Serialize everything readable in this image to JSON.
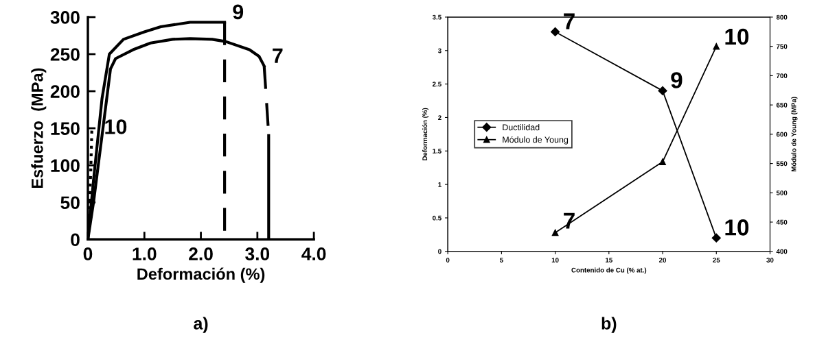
{
  "chart_data": [
    {
      "type": "line",
      "xlabel": "Deformación (%)",
      "ylabel": "Esfuerzo  (MPa)",
      "xlim": [
        0,
        4.0
      ],
      "xticks": [
        0,
        {
          "value": 1,
          "label": "1.0"
        },
        {
          "value": 2,
          "label": "2.0"
        },
        {
          "value": 3,
          "label": "3.0"
        },
        {
          "value": 4,
          "label": "4.0"
        }
      ],
      "ylim": [
        0,
        300
      ],
      "yticks": [
        0,
        50,
        100,
        150,
        200,
        250,
        300
      ],
      "grid": false,
      "legend": false,
      "series": [
        {
          "color": "#000000",
          "line_style": "solid",
          "x": [
            0,
            0.1,
            0.25,
            0.4,
            0.49,
            0.8,
            1.11,
            1.5,
            1.81,
            2.2,
            2.44,
            2.86,
            3.03,
            3.12
          ],
          "values": [
            0,
            50,
            140,
            230,
            244,
            256,
            265,
            270,
            271,
            270,
            267,
            256,
            247,
            234
          ]
        },
        {
          "color": "#000000",
          "line_style": "dashed",
          "x": [
            3.12,
            3.15,
            3.19
          ],
          "values": [
            234,
            200,
            153
          ]
        },
        {
          "color": "#000000",
          "line_style": "solid",
          "x": [
            3.2,
            3.2
          ],
          "values": [
            140,
            0
          ]
        },
        {
          "color": "#000000",
          "line_style": "solid",
          "x": [
            0,
            0.1,
            0.25,
            0.38,
            0.63,
            1.0,
            1.29,
            1.81,
            2.42
          ],
          "values": [
            0,
            80,
            190,
            250,
            270,
            280,
            287,
            293,
            293
          ]
        },
        {
          "color": "#000000",
          "line_style": "dashed",
          "x": [
            2.42,
            2.42
          ],
          "values": [
            293,
            0
          ]
        },
        {
          "color": "#000000",
          "line_style": "dotted",
          "x": [
            0,
            0.05,
            0.07
          ],
          "values": [
            0,
            90,
            148
          ]
        }
      ],
      "annotations": [
        {
          "text": "9",
          "x": 2.42,
          "y": 293
        },
        {
          "text": "7",
          "x": 3.12,
          "y": 234
        },
        {
          "text": "10",
          "x": 0.15,
          "y": 138
        },
        "a)"
      ]
    },
    {
      "type": "line",
      "xlabel": "Contenido de Cu (% at.)",
      "ylabel": "Deformación (%)",
      "y2label": "Módulo de Young (MPa)",
      "xlim": [
        0,
        30
      ],
      "xticks": [
        0,
        5,
        10,
        15,
        20,
        25,
        30
      ],
      "ylim": [
        0,
        3.5
      ],
      "yticks": [
        0,
        0.5,
        1,
        1.5,
        2,
        2.5,
        3,
        3.5
      ],
      "y2lim": [
        400,
        800
      ],
      "y2ticks": [
        400,
        450,
        500,
        550,
        600,
        650,
        700,
        750,
        800
      ],
      "grid": false,
      "legend": "center left",
      "series": [
        {
          "name": "Ductilidad",
          "color": "#000000",
          "marker": "diamond",
          "line_style": "solid",
          "x": [
            10,
            20,
            25
          ],
          "values": [
            3.28,
            2.4,
            0.2
          ]
        },
        {
          "name": "Módulo de Young",
          "color": "#000000",
          "marker": "triangle",
          "line_style": "solid",
          "axis": "y2",
          "x": [
            10,
            20,
            25
          ],
          "values": [
            432,
            553,
            750
          ]
        }
      ],
      "annotations": [
        {
          "text": "7",
          "x": 10,
          "y": 3.28
        },
        {
          "text": "7",
          "x": 10,
          "y": 0.3
        },
        {
          "text": "9",
          "x": 20,
          "y": 2.4
        },
        {
          "text": "10",
          "x": 25,
          "y": 3.05
        },
        {
          "text": "10",
          "x": 25,
          "y": 0.2
        },
        "b)"
      ]
    }
  ]
}
